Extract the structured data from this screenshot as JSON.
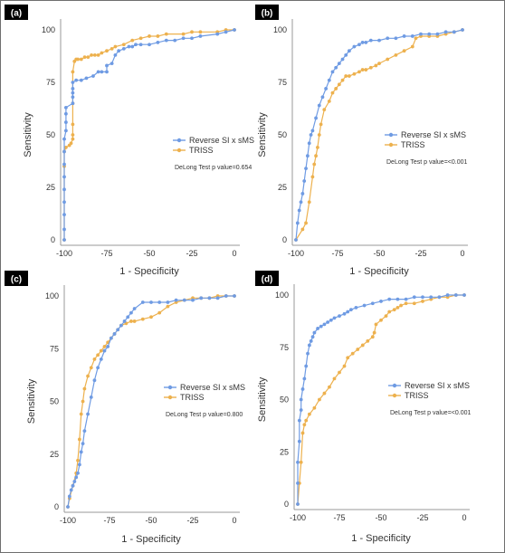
{
  "colors": {
    "reverse": "#6f9be3",
    "triss": "#edb14e",
    "axis": "#999999",
    "tag_bg": "#000000"
  },
  "chart_data": [
    {
      "panel": "(a)",
      "type": "line",
      "xlabel": "1 - Specificity",
      "ylabel": "Sensitivity",
      "xlim": [
        -100,
        0
      ],
      "ylim": [
        0,
        100
      ],
      "xticks": [
        -100,
        -75,
        -50,
        -25,
        0
      ],
      "yticks": [
        0,
        25,
        50,
        75,
        100
      ],
      "legend_position": "right",
      "annotation": "DeLong Test p value=0.654",
      "series": [
        {
          "name": "Reverse SI x sMS",
          "color_key": "reverse",
          "x": [
            -100,
            -100,
            -100,
            -100,
            -100,
            -100,
            -100,
            -100,
            -100,
            -99,
            -99,
            -99,
            -99,
            -95,
            -95,
            -95,
            -95,
            -95,
            -93,
            -90,
            -87,
            -83,
            -80,
            -78,
            -75,
            -75,
            -72,
            -70,
            -68,
            -65,
            -62,
            -60,
            -58,
            -55,
            -50,
            -45,
            -40,
            -35,
            -30,
            -25,
            -20,
            -10,
            -5,
            0
          ],
          "y": [
            0,
            5,
            12,
            18,
            24,
            30,
            36,
            42,
            48,
            52,
            56,
            60,
            63,
            65,
            68,
            70,
            72,
            75,
            76,
            76,
            77,
            78,
            80,
            80,
            80,
            83,
            84,
            88,
            90,
            91,
            92,
            92,
            93,
            93,
            93,
            94,
            95,
            95,
            96,
            96,
            97,
            98,
            99,
            100
          ]
        },
        {
          "name": "TRISS",
          "color_key": "triss",
          "x": [
            -100,
            -100,
            -100,
            -99,
            -97,
            -96,
            -95,
            -95,
            -95,
            -95,
            -95,
            -94,
            -93,
            -92,
            -90,
            -88,
            -86,
            -84,
            -82,
            -80,
            -78,
            -75,
            -72,
            -70,
            -65,
            -60,
            -55,
            -50,
            -45,
            -40,
            -30,
            -25,
            -20,
            -10,
            -5,
            0
          ],
          "y": [
            0,
            35,
            42,
            44,
            45,
            46,
            48,
            50,
            55,
            65,
            80,
            85,
            86,
            86,
            86,
            87,
            87,
            88,
            88,
            88,
            89,
            90,
            91,
            92,
            93,
            95,
            96,
            97,
            97,
            98,
            98,
            99,
            99,
            99,
            100,
            100
          ]
        }
      ]
    },
    {
      "panel": "(b)",
      "type": "line",
      "xlabel": "1 - Specificity",
      "ylabel": "Sensitivity",
      "xlim": [
        -100,
        0
      ],
      "ylim": [
        0,
        100
      ],
      "xticks": [
        -100,
        -75,
        -50,
        -25,
        0
      ],
      "yticks": [
        0,
        25,
        50,
        75,
        100
      ],
      "legend_position": "right",
      "annotation": "DeLong Test p value=<0.001",
      "series": [
        {
          "name": "Reverse SI x sMS",
          "color_key": "reverse",
          "x": [
            -100,
            -99,
            -98,
            -97,
            -96,
            -95,
            -94,
            -93,
            -92,
            -91,
            -90,
            -88,
            -86,
            -84,
            -82,
            -80,
            -78,
            -76,
            -74,
            -72,
            -70,
            -68,
            -65,
            -62,
            -60,
            -58,
            -55,
            -50,
            -45,
            -40,
            -35,
            -30,
            -25,
            -20,
            -15,
            -10,
            -5,
            0
          ],
          "y": [
            0,
            8,
            14,
            18,
            22,
            28,
            34,
            40,
            46,
            50,
            52,
            58,
            64,
            68,
            72,
            76,
            80,
            82,
            84,
            86,
            88,
            90,
            92,
            93,
            94,
            94,
            95,
            95,
            96,
            96,
            97,
            97,
            98,
            98,
            98,
            99,
            99,
            100
          ]
        },
        {
          "name": "TRISS",
          "color_key": "triss",
          "x": [
            -100,
            -96,
            -94,
            -92,
            -90,
            -89,
            -88,
            -87,
            -86,
            -85,
            -83,
            -80,
            -78,
            -76,
            -74,
            -72,
            -70,
            -68,
            -65,
            -62,
            -60,
            -58,
            -55,
            -52,
            -50,
            -45,
            -40,
            -35,
            -30,
            -28,
            -25,
            -20,
            -15,
            -10,
            -5,
            0
          ],
          "y": [
            0,
            5,
            8,
            18,
            30,
            36,
            40,
            44,
            50,
            55,
            62,
            66,
            70,
            72,
            74,
            76,
            78,
            78,
            79,
            80,
            81,
            81,
            82,
            83,
            84,
            86,
            88,
            90,
            92,
            96,
            97,
            97,
            97,
            98,
            99,
            100
          ]
        }
      ]
    },
    {
      "panel": "(c)",
      "type": "line",
      "xlabel": "1 - Specificity",
      "ylabel": "Sensitivity",
      "xlim": [
        -100,
        0
      ],
      "ylim": [
        0,
        100
      ],
      "xticks": [
        -100,
        -75,
        -50,
        -25,
        0
      ],
      "yticks": [
        0,
        25,
        50,
        75,
        100
      ],
      "legend_position": "right",
      "annotation": "DeLong Test p value=0.800",
      "series": [
        {
          "name": "Reverse SI x sMS",
          "color_key": "reverse",
          "x": [
            -100,
            -99,
            -98,
            -97,
            -96,
            -95,
            -94,
            -93,
            -92,
            -91,
            -90,
            -88,
            -86,
            -84,
            -82,
            -80,
            -78,
            -76,
            -74,
            -72,
            -70,
            -68,
            -66,
            -64,
            -62,
            -60,
            -55,
            -50,
            -45,
            -40,
            -35,
            -30,
            -25,
            -20,
            -15,
            -10,
            -5,
            0
          ],
          "y": [
            0,
            5,
            8,
            10,
            12,
            14,
            16,
            20,
            26,
            30,
            36,
            44,
            52,
            60,
            66,
            70,
            74,
            76,
            80,
            82,
            84,
            86,
            88,
            90,
            92,
            94,
            97,
            97,
            97,
            97,
            98,
            98,
            98,
            99,
            99,
            99,
            100,
            100
          ]
        },
        {
          "name": "TRISS",
          "color_key": "triss",
          "x": [
            -100,
            -99,
            -97,
            -95,
            -94,
            -93,
            -92,
            -91,
            -90,
            -88,
            -86,
            -84,
            -82,
            -80,
            -78,
            -76,
            -74,
            -72,
            -70,
            -68,
            -65,
            -62,
            -60,
            -55,
            -50,
            -45,
            -40,
            -35,
            -30,
            -25,
            -20,
            -15,
            -10,
            -5,
            0
          ],
          "y": [
            0,
            4,
            10,
            16,
            22,
            32,
            44,
            50,
            56,
            62,
            66,
            70,
            72,
            74,
            76,
            78,
            80,
            82,
            84,
            86,
            87,
            88,
            88,
            89,
            90,
            92,
            95,
            97,
            98,
            99,
            99,
            99,
            100,
            100,
            100
          ]
        }
      ]
    },
    {
      "panel": "(d)",
      "type": "line",
      "xlabel": "1 - Specificity",
      "ylabel": "Sensitivity",
      "xlim": [
        -100,
        0
      ],
      "ylim": [
        0,
        100
      ],
      "xticks": [
        -100,
        -75,
        -50,
        -25,
        0
      ],
      "yticks": [
        0,
        25,
        50,
        75,
        100
      ],
      "legend_position": "right",
      "annotation": "DeLong Test p value=<0.001",
      "series": [
        {
          "name": "Reverse SI x sMS",
          "color_key": "reverse",
          "x": [
            -100,
            -100,
            -100,
            -99,
            -99,
            -98,
            -98,
            -97,
            -96,
            -95,
            -94,
            -93,
            -92,
            -91,
            -90,
            -88,
            -86,
            -84,
            -82,
            -80,
            -78,
            -75,
            -72,
            -70,
            -68,
            -65,
            -60,
            -55,
            -50,
            -45,
            -40,
            -35,
            -30,
            -25,
            -20,
            -15,
            -10,
            -5,
            0
          ],
          "y": [
            0,
            10,
            20,
            30,
            40,
            45,
            50,
            55,
            60,
            66,
            72,
            76,
            78,
            80,
            82,
            84,
            85,
            86,
            87,
            88,
            89,
            90,
            91,
            92,
            93,
            94,
            95,
            96,
            97,
            98,
            98,
            98,
            99,
            99,
            99,
            99,
            100,
            100,
            100
          ]
        },
        {
          "name": "TRISS",
          "color_key": "triss",
          "x": [
            -100,
            -99,
            -98,
            -97,
            -96,
            -95,
            -93,
            -90,
            -87,
            -84,
            -81,
            -78,
            -75,
            -72,
            -70,
            -67,
            -64,
            -61,
            -58,
            -55,
            -54,
            -53,
            -50,
            -47,
            -45,
            -42,
            -40,
            -38,
            -35,
            -30,
            -25,
            -20,
            -15,
            -10,
            -5,
            0
          ],
          "y": [
            0,
            10,
            20,
            34,
            38,
            40,
            43,
            46,
            50,
            53,
            56,
            60,
            63,
            66,
            70,
            72,
            74,
            76,
            78,
            80,
            82,
            86,
            88,
            90,
            92,
            93,
            94,
            95,
            96,
            96,
            97,
            98,
            99,
            99,
            100,
            100
          ]
        }
      ]
    }
  ]
}
